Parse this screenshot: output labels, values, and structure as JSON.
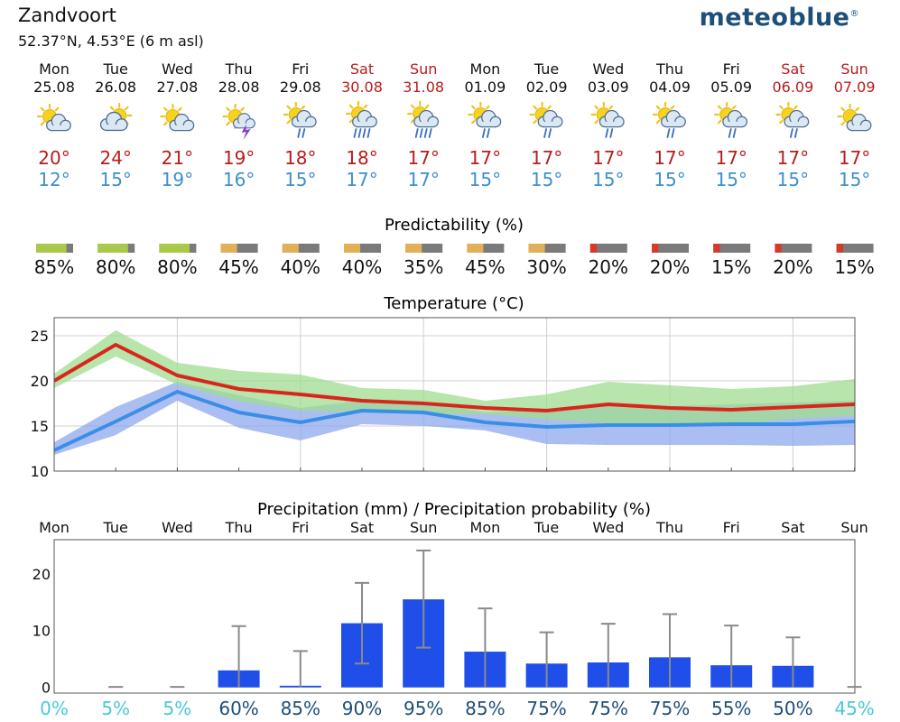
{
  "location": "Zandvoort",
  "coords": "52.37°N, 4.53°E (6 m asl)",
  "logo": "meteoblue",
  "logo_mark": "®",
  "colors": {
    "weekday": "#111111",
    "weekend": "#b71c1c",
    "max_temp": "#b71c1c",
    "min_temp": "#3d8fd0",
    "max_line": "#d9261c",
    "min_line": "#3a8ee6",
    "max_band": "#9fdc8f",
    "min_band": "#8fa8ee",
    "bar": "#1f4fe8",
    "prob_low": "#49c8d8",
    "prob_high": "#1d4f78"
  },
  "days": [
    {
      "day": "Mon",
      "date": "25.08",
      "weekend": false,
      "icon": "sun-cloud-icon",
      "max": "20°",
      "min": "12°"
    },
    {
      "day": "Tue",
      "date": "26.08",
      "weekend": false,
      "icon": "cloud-sun-icon",
      "max": "24°",
      "min": "15°"
    },
    {
      "day": "Wed",
      "date": "27.08",
      "weekend": false,
      "icon": "sun-cloud-icon",
      "max": "21°",
      "min": "19°"
    },
    {
      "day": "Thu",
      "date": "28.08",
      "weekend": false,
      "icon": "sun-thunder-icon",
      "max": "19°",
      "min": "16°"
    },
    {
      "day": "Fri",
      "date": "29.08",
      "weekend": false,
      "icon": "sun-cloud-rain-icon",
      "max": "18°",
      "min": "15°"
    },
    {
      "day": "Sat",
      "date": "30.08",
      "weekend": true,
      "icon": "sun-cloud-heavy-rain-icon",
      "max": "18°",
      "min": "17°"
    },
    {
      "day": "Sun",
      "date": "31.08",
      "weekend": true,
      "icon": "sun-cloud-heavy-rain-icon",
      "max": "17°",
      "min": "17°"
    },
    {
      "day": "Mon",
      "date": "01.09",
      "weekend": false,
      "icon": "sun-cloud-rain-icon",
      "max": "17°",
      "min": "15°"
    },
    {
      "day": "Tue",
      "date": "02.09",
      "weekend": false,
      "icon": "sun-cloud-rain-icon",
      "max": "17°",
      "min": "15°"
    },
    {
      "day": "Wed",
      "date": "03.09",
      "weekend": false,
      "icon": "sun-cloud-rain-icon",
      "max": "17°",
      "min": "15°"
    },
    {
      "day": "Thu",
      "date": "04.09",
      "weekend": false,
      "icon": "sun-cloud-rain-icon",
      "max": "17°",
      "min": "15°"
    },
    {
      "day": "Fri",
      "date": "05.09",
      "weekend": false,
      "icon": "sun-cloud-rain-icon",
      "max": "17°",
      "min": "15°"
    },
    {
      "day": "Sat",
      "date": "06.09",
      "weekend": true,
      "icon": "sun-cloud-rain-icon",
      "max": "17°",
      "min": "15°"
    },
    {
      "day": "Sun",
      "date": "07.09",
      "weekend": true,
      "icon": "sun-cloud-icon",
      "max": "17°",
      "min": "15°"
    }
  ],
  "predictability": {
    "title": "Predictability (%)",
    "values": [
      85,
      80,
      80,
      45,
      40,
      40,
      35,
      45,
      30,
      20,
      20,
      15,
      20,
      15
    ],
    "labels": [
      "85%",
      "80%",
      "80%",
      "45%",
      "40%",
      "40%",
      "35%",
      "45%",
      "30%",
      "20%",
      "20%",
      "15%",
      "20%",
      "15%"
    ]
  },
  "chart_data": [
    {
      "type": "line",
      "title": "Temperature (°C)",
      "x": [
        "25.08",
        "26.08",
        "27.08",
        "28.08",
        "29.08",
        "30.08",
        "31.08",
        "01.09",
        "02.09",
        "03.09",
        "04.09",
        "05.09",
        "06.09",
        "07.09"
      ],
      "ylim": [
        10,
        27
      ],
      "yticks": [
        10,
        15,
        20,
        25
      ],
      "grid": true,
      "series": [
        {
          "role": "max",
          "values": [
            20.0,
            24.0,
            20.6,
            19.1,
            18.5,
            17.8,
            17.5,
            17.0,
            16.7,
            17.4,
            17.0,
            16.8,
            17.1,
            17.4
          ],
          "band_low": [
            19.2,
            22.7,
            19.6,
            17.7,
            16.7,
            16.5,
            16.3,
            16.3,
            15.7,
            15.3,
            15.1,
            15.1,
            15.8,
            16.1
          ],
          "band_high": [
            20.8,
            25.6,
            22.0,
            21.1,
            20.7,
            19.2,
            19.0,
            17.8,
            18.5,
            19.9,
            19.5,
            19.1,
            19.4,
            20.2
          ]
        },
        {
          "role": "min",
          "values": [
            12.3,
            15.5,
            18.8,
            16.5,
            15.4,
            16.7,
            16.5,
            15.4,
            14.9,
            15.1,
            15.1,
            15.2,
            15.2,
            15.5
          ],
          "band_low": [
            11.8,
            14.0,
            17.8,
            14.8,
            13.4,
            15.2,
            15.0,
            14.5,
            13.0,
            12.9,
            12.9,
            12.9,
            12.8,
            12.9
          ],
          "band_high": [
            13.2,
            17.1,
            19.9,
            18.4,
            17.0,
            17.8,
            17.7,
            16.5,
            16.8,
            17.3,
            17.2,
            17.4,
            17.6,
            17.8
          ]
        }
      ]
    },
    {
      "type": "bar",
      "title": "Precipitation (mm) / Precipitation probability (%)",
      "categories": [
        "Mon",
        "Tue",
        "Wed",
        "Thu",
        "Fri",
        "Sat",
        "Sun",
        "Mon",
        "Tue",
        "Wed",
        "Thu",
        "Fri",
        "Sat",
        "Sun"
      ],
      "values": [
        0,
        0,
        0,
        3.0,
        0.3,
        11.3,
        15.5,
        6.3,
        4.2,
        4.4,
        5.3,
        3.9,
        3.8,
        0
      ],
      "error_low": [
        0,
        0,
        0,
        0,
        0,
        4.2,
        7.0,
        0,
        0,
        0,
        0,
        0,
        0,
        0
      ],
      "error_high": [
        0,
        0.1,
        0.1,
        10.8,
        6.4,
        18.4,
        24.1,
        13.9,
        9.7,
        11.2,
        12.9,
        10.9,
        8.8,
        0.1
      ],
      "ylim": [
        -1,
        26
      ],
      "yticks": [
        0,
        10,
        20
      ],
      "probability": [
        0,
        5,
        5,
        60,
        85,
        90,
        95,
        85,
        75,
        75,
        75,
        55,
        50,
        45
      ],
      "probability_labels": [
        "0%",
        "5%",
        "5%",
        "60%",
        "85%",
        "90%",
        "95%",
        "85%",
        "75%",
        "75%",
        "75%",
        "55%",
        "50%",
        "45%"
      ]
    }
  ]
}
